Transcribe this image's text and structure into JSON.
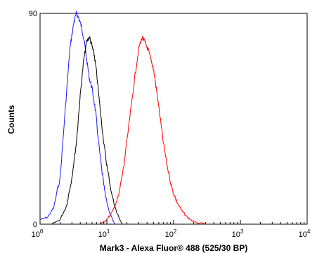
{
  "chart_data": {
    "type": "line",
    "title": "",
    "xlabel": "Mark3 - Alexa Fluor® 488 (525/30 BP)",
    "ylabel": "Counts",
    "x_scale": "log",
    "xlim": [
      1,
      10000
    ],
    "ylim": [
      0,
      90
    ],
    "x_ticks": [
      {
        "value": 1,
        "base": "10",
        "exp": "0"
      },
      {
        "value": 10,
        "base": "10",
        "exp": "1"
      },
      {
        "value": 100,
        "base": "10",
        "exp": "2"
      },
      {
        "value": 1000,
        "base": "10",
        "exp": "3"
      },
      {
        "value": 10000,
        "base": "10",
        "exp": "4"
      }
    ],
    "y_ticks": [
      {
        "value": 0,
        "label": "0"
      },
      {
        "value": 90,
        "label": "90"
      }
    ],
    "grid": false,
    "series": [
      {
        "color": "#1a1aff",
        "x": [
          1.0,
          1.3,
          1.6,
          2.0,
          2.4,
          2.8,
          3.2,
          3.5,
          3.8,
          4.2,
          4.6,
          5.0,
          5.5,
          6.0,
          6.8,
          7.5,
          8.5,
          9.5,
          11,
          13
        ],
        "y": [
          2,
          3,
          7,
          20,
          50,
          75,
          86,
          90,
          88,
          84,
          78,
          70,
          62,
          58,
          48,
          35,
          22,
          12,
          5,
          0
        ]
      },
      {
        "color": "#000000",
        "x": [
          1.5,
          2.0,
          2.5,
          3.0,
          3.5,
          4.0,
          4.5,
          5.0,
          5.5,
          6.0,
          6.5,
          7.0,
          8.0,
          9.0,
          10,
          12,
          14,
          17
        ],
        "y": [
          0,
          2,
          8,
          20,
          35,
          55,
          70,
          78,
          80,
          76,
          72,
          65,
          48,
          35,
          25,
          12,
          5,
          0
        ]
      },
      {
        "color": "#ff0000",
        "x": [
          8,
          10,
          12,
          15,
          18,
          22,
          26,
          30,
          34,
          38,
          42,
          46,
          50,
          55,
          60,
          70,
          80,
          95,
          110,
          130,
          160,
          200,
          300
        ],
        "y": [
          0,
          2,
          5,
          12,
          25,
          45,
          62,
          75,
          80,
          77,
          74,
          70,
          66,
          58,
          50,
          35,
          25,
          15,
          10,
          6,
          3,
          1,
          0
        ]
      }
    ]
  }
}
